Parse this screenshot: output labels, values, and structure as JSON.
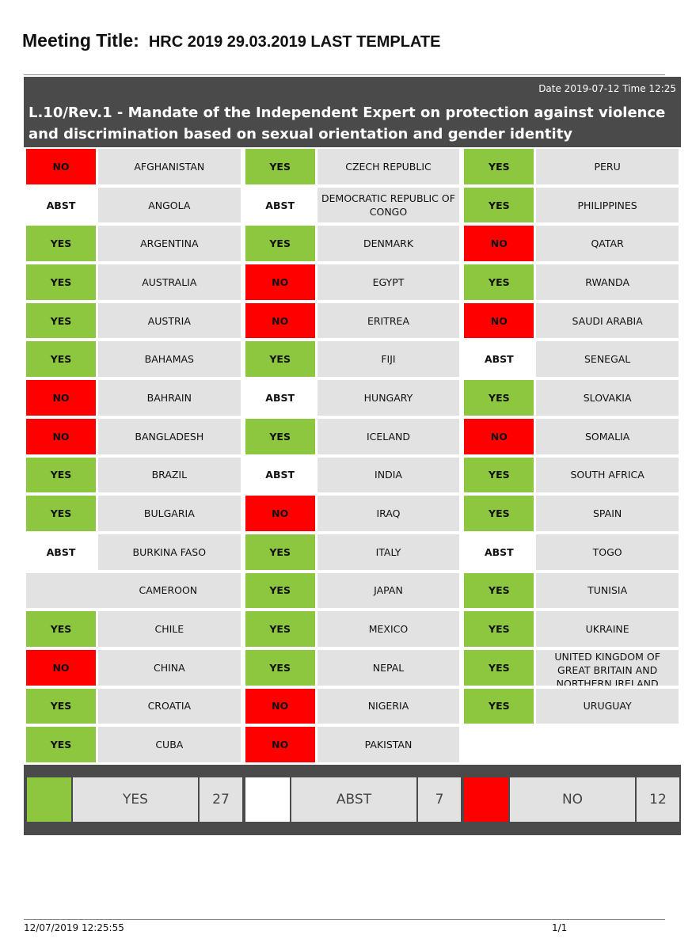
{
  "meeting": {
    "label": "Meeting Title:",
    "value": "HRC 2019 29.03.2019 LAST TEMPLATE"
  },
  "header": {
    "date": "Date 2019-07-12  Time 12:25",
    "title": "L.10/Rev.1 - Mandate of the Independent Expert on protection against violence and discrimination based on sexual orientation and gender identity"
  },
  "colors": {
    "yes": "#8dc63f",
    "no": "#ff0000",
    "abst": "#ffffff",
    "cell": "#e2e2e2",
    "header": "#4a4a4a"
  },
  "votes": {
    "col1": [
      {
        "vote": "NO",
        "country": "AFGHANISTAN"
      },
      {
        "vote": "ABST",
        "country": "ANGOLA"
      },
      {
        "vote": "YES",
        "country": "ARGENTINA"
      },
      {
        "vote": "YES",
        "country": "AUSTRALIA"
      },
      {
        "vote": "YES",
        "country": "AUSTRIA"
      },
      {
        "vote": "YES",
        "country": "BAHAMAS"
      },
      {
        "vote": "NO",
        "country": "BAHRAIN"
      },
      {
        "vote": "NO",
        "country": "BANGLADESH"
      },
      {
        "vote": "YES",
        "country": "BRAZIL"
      },
      {
        "vote": "YES",
        "country": "BULGARIA"
      },
      {
        "vote": "ABST",
        "country": "BURKINA FASO"
      },
      {
        "vote": "",
        "country": "CAMEROON"
      },
      {
        "vote": "YES",
        "country": "CHILE"
      },
      {
        "vote": "NO",
        "country": "CHINA"
      },
      {
        "vote": "YES",
        "country": "CROATIA"
      },
      {
        "vote": "YES",
        "country": "CUBA"
      }
    ],
    "col2": [
      {
        "vote": "YES",
        "country": "CZECH REPUBLIC"
      },
      {
        "vote": "ABST",
        "country": "DEMOCRATIC REPUBLIC OF CONGO"
      },
      {
        "vote": "YES",
        "country": "DENMARK"
      },
      {
        "vote": "NO",
        "country": "EGYPT"
      },
      {
        "vote": "NO",
        "country": "ERITREA"
      },
      {
        "vote": "YES",
        "country": "FIJI"
      },
      {
        "vote": "ABST",
        "country": "HUNGARY"
      },
      {
        "vote": "YES",
        "country": "ICELAND"
      },
      {
        "vote": "ABST",
        "country": "INDIA"
      },
      {
        "vote": "NO",
        "country": "IRAQ"
      },
      {
        "vote": "YES",
        "country": "ITALY"
      },
      {
        "vote": "YES",
        "country": "JAPAN"
      },
      {
        "vote": "YES",
        "country": "MEXICO"
      },
      {
        "vote": "YES",
        "country": "NEPAL"
      },
      {
        "vote": "NO",
        "country": "NIGERIA"
      },
      {
        "vote": "NO",
        "country": "PAKISTAN"
      }
    ],
    "col3": [
      {
        "vote": "YES",
        "country": "PERU"
      },
      {
        "vote": "YES",
        "country": "PHILIPPINES"
      },
      {
        "vote": "NO",
        "country": "QATAR"
      },
      {
        "vote": "YES",
        "country": "RWANDA"
      },
      {
        "vote": "NO",
        "country": "SAUDI ARABIA"
      },
      {
        "vote": "ABST",
        "country": "SENEGAL"
      },
      {
        "vote": "YES",
        "country": "SLOVAKIA"
      },
      {
        "vote": "NO",
        "country": "SOMALIA"
      },
      {
        "vote": "YES",
        "country": "SOUTH AFRICA"
      },
      {
        "vote": "YES",
        "country": "SPAIN"
      },
      {
        "vote": "ABST",
        "country": "TOGO"
      },
      {
        "vote": "YES",
        "country": "TUNISIA"
      },
      {
        "vote": "YES",
        "country": "UKRAINE"
      },
      {
        "vote": "YES",
        "country": "UNITED KINGDOM OF GREAT BRITAIN AND NORTHERN IRELAND"
      },
      {
        "vote": "YES",
        "country": "URUGUAY"
      }
    ]
  },
  "summary": [
    {
      "label": "YES",
      "count": "27",
      "color": "#8dc63f"
    },
    {
      "label": "ABST",
      "count": "7",
      "color": "#ffffff"
    },
    {
      "label": "NO",
      "count": "12",
      "color": "#ff0000"
    }
  ],
  "footer": {
    "timestamp": "12/07/2019 12:25:55",
    "page": "1/1"
  }
}
